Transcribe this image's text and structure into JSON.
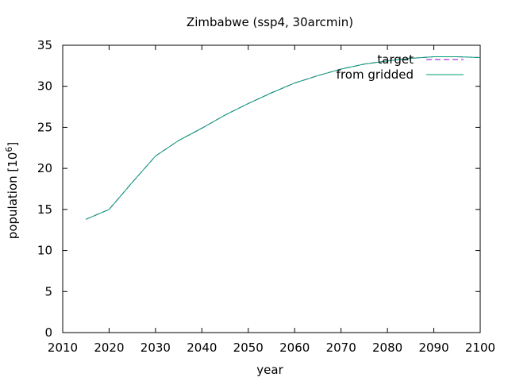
{
  "chart_data": {
    "type": "line",
    "title": "Zimbabwe (ssp4, 30arcmin)",
    "xlabel": "year",
    "ylabel": "population [10",
    "ylabel_sup": "6",
    "ylabel_suffix": "]",
    "xlim": [
      2010,
      2100
    ],
    "ylim": [
      0,
      35
    ],
    "xticks": [
      2010,
      2020,
      2030,
      2040,
      2050,
      2060,
      2070,
      2080,
      2090,
      2100
    ],
    "yticks": [
      0,
      5,
      10,
      15,
      20,
      25,
      30,
      35
    ],
    "grid": false,
    "legend_position": "top-right",
    "series": [
      {
        "name": "target",
        "color": "#9400d3",
        "dash": true,
        "x": [
          2015,
          2020,
          2025,
          2030,
          2035,
          2040,
          2045,
          2050,
          2055,
          2060,
          2065,
          2070,
          2075,
          2080,
          2085,
          2090,
          2095,
          2100
        ],
        "y": [
          13.8,
          15.0,
          18.3,
          21.5,
          23.4,
          24.9,
          26.5,
          27.9,
          29.2,
          30.4,
          31.3,
          32.1,
          32.7,
          33.1,
          33.4,
          33.6,
          33.6,
          33.5
        ]
      },
      {
        "name": "from gridded",
        "color": "#009e73",
        "dash": false,
        "x": [
          2015,
          2020,
          2025,
          2030,
          2035,
          2040,
          2045,
          2050,
          2055,
          2060,
          2065,
          2070,
          2075,
          2080,
          2085,
          2090,
          2095,
          2100
        ],
        "y": [
          13.8,
          15.0,
          18.3,
          21.5,
          23.4,
          24.9,
          26.5,
          27.9,
          29.2,
          30.4,
          31.3,
          32.1,
          32.7,
          33.1,
          33.4,
          33.6,
          33.6,
          33.5
        ]
      }
    ]
  }
}
